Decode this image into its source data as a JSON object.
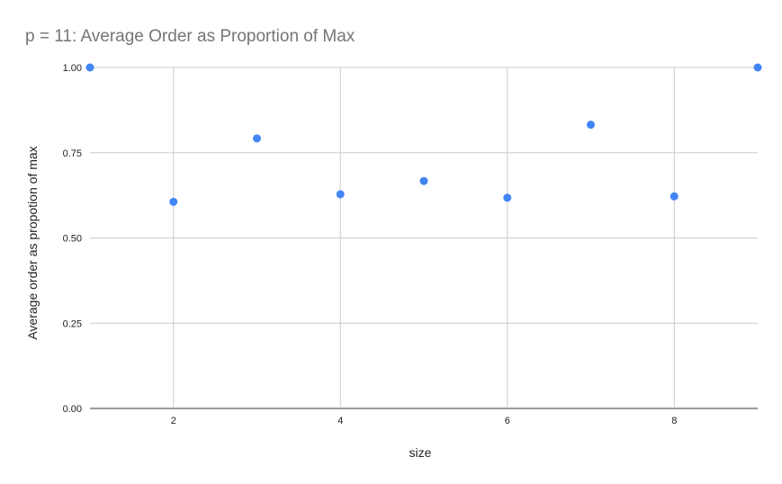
{
  "chart_data": {
    "type": "scatter",
    "title": "p = 11: Average Order as Proportion of Max",
    "xlabel": "size",
    "ylabel": "Average order as propotion of max",
    "xlim": [
      1,
      9
    ],
    "ylim": [
      0,
      1
    ],
    "x_ticks": [
      2,
      4,
      6,
      8
    ],
    "y_ticks": [
      0,
      0.25,
      0.5,
      0.75,
      1
    ],
    "y_tick_labels": [
      "0.00",
      "0.25",
      "0.50",
      "0.75",
      "1.00"
    ],
    "x_tick_labels": [
      "2",
      "4",
      "6",
      "8"
    ],
    "grid": true,
    "legend": "none",
    "color": "#4285f4",
    "points": [
      {
        "x": 1,
        "y": 1.0
      },
      {
        "x": 2,
        "y": 0.606
      },
      {
        "x": 3,
        "y": 0.792
      },
      {
        "x": 4,
        "y": 0.628
      },
      {
        "x": 5,
        "y": 0.667
      },
      {
        "x": 6,
        "y": 0.618
      },
      {
        "x": 7,
        "y": 0.832
      },
      {
        "x": 8,
        "y": 0.622
      },
      {
        "x": 9,
        "y": 1.0
      }
    ]
  }
}
